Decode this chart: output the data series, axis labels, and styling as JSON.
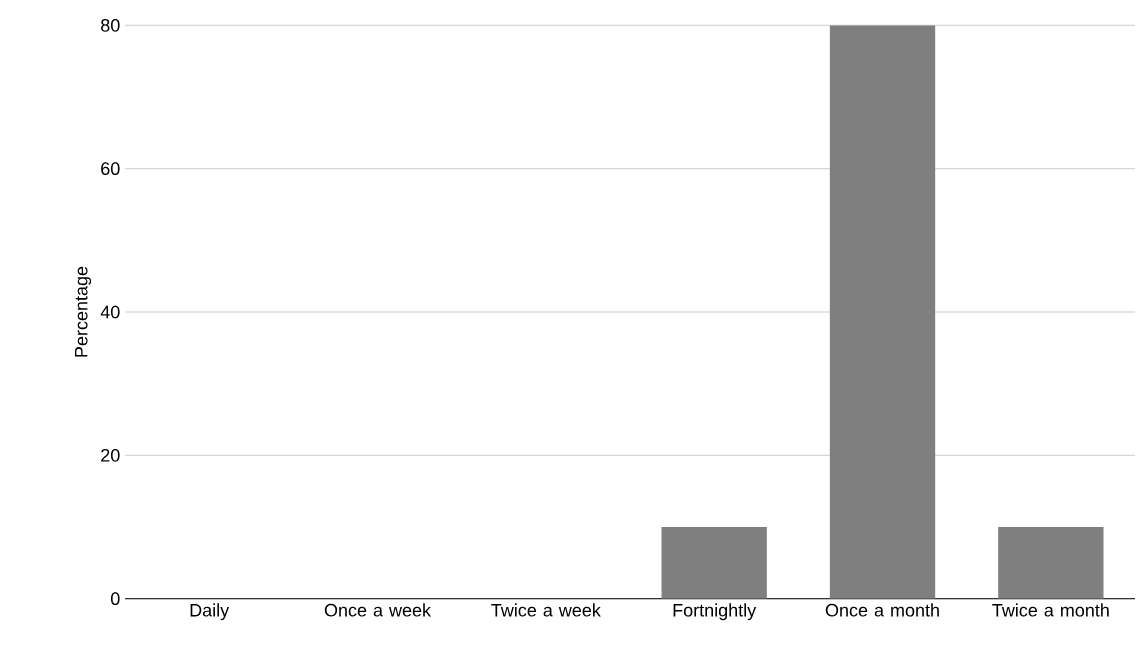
{
  "chart_data": {
    "type": "bar",
    "ylabel": "Percentage",
    "categories": [
      "Daily",
      "Once a week",
      "Twice a week",
      "Fortnightly",
      "Once a month",
      "Twice a month"
    ],
    "values": [
      0,
      0,
      0,
      10,
      80,
      10
    ],
    "color": "#7f7f7f",
    "ylim": [
      0,
      80
    ],
    "yticks": [
      0,
      20,
      40,
      60,
      80
    ],
    "grid": "y"
  }
}
